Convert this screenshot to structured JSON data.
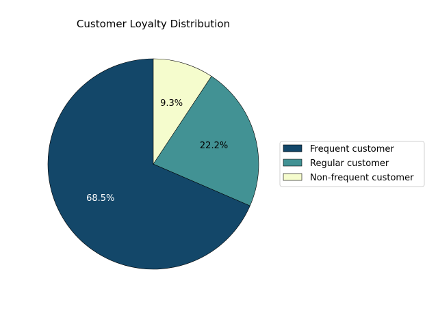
{
  "chart_data": {
    "type": "pie",
    "title": "Customer Loyalty Distribution",
    "categories": [
      "Frequent customer",
      "Regular customer",
      "Non-frequent customer"
    ],
    "values": [
      68.5,
      22.2,
      9.3
    ],
    "labels": [
      "68.5%",
      "22.2%",
      "9.3%"
    ],
    "colors": [
      "#134769",
      "#429294",
      "#f5fccd"
    ],
    "label_colors": [
      "#ffffff",
      "#000000",
      "#000000"
    ],
    "legend_placement": "right"
  }
}
